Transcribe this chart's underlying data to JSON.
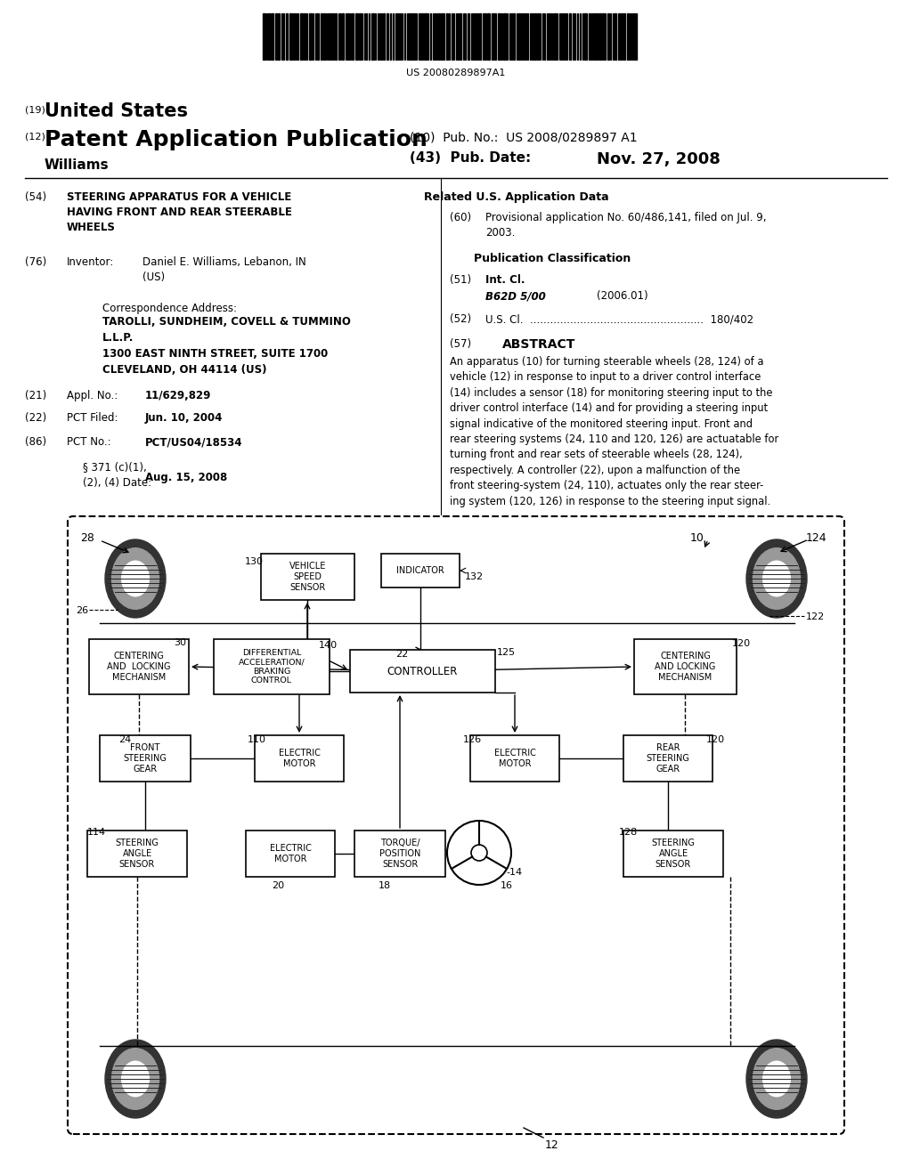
{
  "bg_color": "#ffffff",
  "barcode_text": "US 20080289897A1",
  "title_19": "(19)",
  "title_us": "United States",
  "title_12": "(12)",
  "title_pub": "Patent Application Publication",
  "title_10": "(10)  Pub. No.:  US 2008/0289897 A1",
  "title_auth": "Williams",
  "title_43": "(43)  Pub. Date:",
  "title_date": "Nov. 27, 2008",
  "field54_label": "(54)",
  "field54_title": "STEERING APPARATUS FOR A VEHICLE\nHAVING FRONT AND REAR STEERABLE\nWHEELS",
  "field76_label": "(76)",
  "field76_key": "Inventor:",
  "field76_val": "Daniel E. Williams, Lebanon, IN\n(US)",
  "corr_hd": "Correspondence Address:",
  "corr_body": "TAROLLI, SUNDHEIM, COVELL & TUMMINO\nL.L.P.\n1300 EAST NINTH STREET, SUITE 1700\nCLEVELAND, OH 44114 (US)",
  "f21_label": "(21)",
  "f21_key": "Appl. No.:",
  "f21_val": "11/629,829",
  "f22_label": "(22)",
  "f22_key": "PCT Filed:",
  "f22_val": "Jun. 10, 2004",
  "f86_label": "(86)",
  "f86_key": "PCT No.:",
  "f86_val": "PCT/US04/18534",
  "f86b_key": "§ 371 (c)(1),\n(2), (4) Date:",
  "f86b_val": "Aug. 15, 2008",
  "related_hd": "Related U.S. Application Data",
  "f60_label": "(60)",
  "f60_val": "Provisional application No. 60/486,141, filed on Jul. 9,\n2003.",
  "pubcls_hd": "Publication Classification",
  "f51_label": "(51)",
  "f51_key": "Int. Cl.",
  "f51_cls": "B62D 5/00",
  "f51_yr": "(2006.01)",
  "f52_label": "(52)",
  "f52_val": "U.S. Cl.  ....................................................  180/402",
  "f57_label": "(57)",
  "f57_hd": "ABSTRACT",
  "abstract": "An apparatus (10) for turning steerable wheels (28, 124) of a\nvehicle (12) in response to input to a driver control interface\n(14) includes a sensor (18) for monitoring steering input to the\ndriver control interface (14) and for providing a steering input\nsignal indicative of the monitored steering input. Front and\nrear steering systems (24, 110 and 120, 126) are actuatable for\nturning front and rear sets of steerable wheels (28, 124),\nrespectively. A controller (22), upon a malfunction of the\nfront steering-system (24, 110), actuates only the rear steer-\ning system (120, 126) in response to the steering input signal."
}
